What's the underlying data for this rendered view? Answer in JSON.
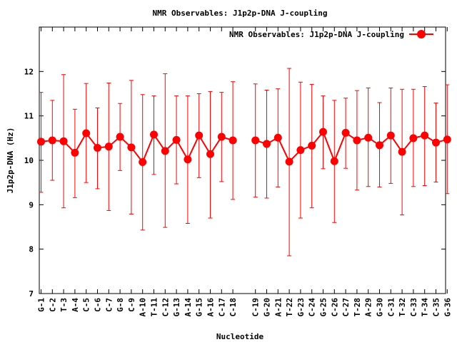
{
  "chart_data": {
    "type": "line",
    "title": "NMR Observables: J1p2p-DNA J-coupling",
    "xlabel": "Nucleotide",
    "ylabel": "J1p2p-DNA (Hz)",
    "ylim": [
      7,
      13
    ],
    "yticks": [
      7,
      8,
      9,
      10,
      11,
      12
    ],
    "grid": false,
    "legend_position": "top-right",
    "series_color": "#ff0000",
    "categories": [
      "G-1",
      "C-2",
      "T-3",
      "A-4",
      "C-5",
      "C-6",
      "C-7",
      "G-8",
      "C-9",
      "A-10",
      "T-11",
      "C-12",
      "G-13",
      "A-14",
      "G-15",
      "A-16",
      "C-17",
      "C-18",
      "C-19",
      "G-20",
      "A-21",
      "T-22",
      "G-23",
      "C-24",
      "G-25",
      "C-26",
      "C-27",
      "T-28",
      "A-29",
      "G-30",
      "C-31",
      "T-32",
      "C-33",
      "T-34",
      "C-35",
      "G-36"
    ],
    "series": [
      {
        "name": "NMR Observables: J1p2p-DNA J-coupling",
        "segments": [
          {
            "categories": [
              "G-1",
              "C-2",
              "T-3",
              "A-4",
              "C-5",
              "C-6",
              "C-7",
              "G-8",
              "C-9",
              "A-10",
              "T-11",
              "C-12",
              "G-13",
              "A-14",
              "G-15",
              "A-16",
              "C-17",
              "C-18"
            ],
            "values": [
              10.42,
              10.45,
              10.43,
              10.17,
              10.61,
              10.28,
              10.31,
              10.53,
              10.29,
              9.96,
              10.58,
              10.21,
              10.46,
              10.02,
              10.56,
              10.14,
              10.53,
              10.45
            ],
            "err_low": [
              9.28,
              9.55,
              8.93,
              9.16,
              9.5,
              9.36,
              8.87,
              9.77,
              8.79,
              8.43,
              9.68,
              8.49,
              9.47,
              8.58,
              9.61,
              8.7,
              9.52,
              9.12
            ],
            "err_high": [
              11.53,
              11.35,
              11.93,
              11.15,
              11.73,
              11.18,
              11.74,
              11.28,
              11.8,
              11.48,
              11.45,
              11.95,
              11.45,
              11.45,
              11.5,
              11.55,
              11.53,
              11.77
            ]
          },
          {
            "categories": [
              "C-19",
              "G-20",
              "A-21",
              "T-22",
              "G-23",
              "C-24",
              "G-25",
              "C-26",
              "C-27",
              "T-28",
              "A-29",
              "G-30",
              "C-31",
              "T-32",
              "C-33",
              "T-34",
              "C-35",
              "G-36"
            ],
            "values": [
              10.45,
              10.37,
              10.51,
              9.97,
              10.23,
              10.33,
              10.64,
              9.98,
              10.62,
              10.45,
              10.51,
              10.34,
              10.56,
              10.19,
              10.5,
              10.56,
              10.4,
              10.47
            ],
            "err_low": [
              9.17,
              9.15,
              9.4,
              7.85,
              8.7,
              8.93,
              9.81,
              8.6,
              9.82,
              9.33,
              9.41,
              9.4,
              9.48,
              8.77,
              9.41,
              9.43,
              9.51,
              9.25
            ],
            "err_high": [
              11.72,
              11.58,
              11.61,
              12.07,
              11.76,
              11.71,
              11.45,
              11.35,
              11.4,
              11.57,
              11.63,
              11.3,
              11.63,
              11.6,
              11.6,
              11.66,
              11.29,
              11.7
            ]
          }
        ]
      }
    ]
  }
}
